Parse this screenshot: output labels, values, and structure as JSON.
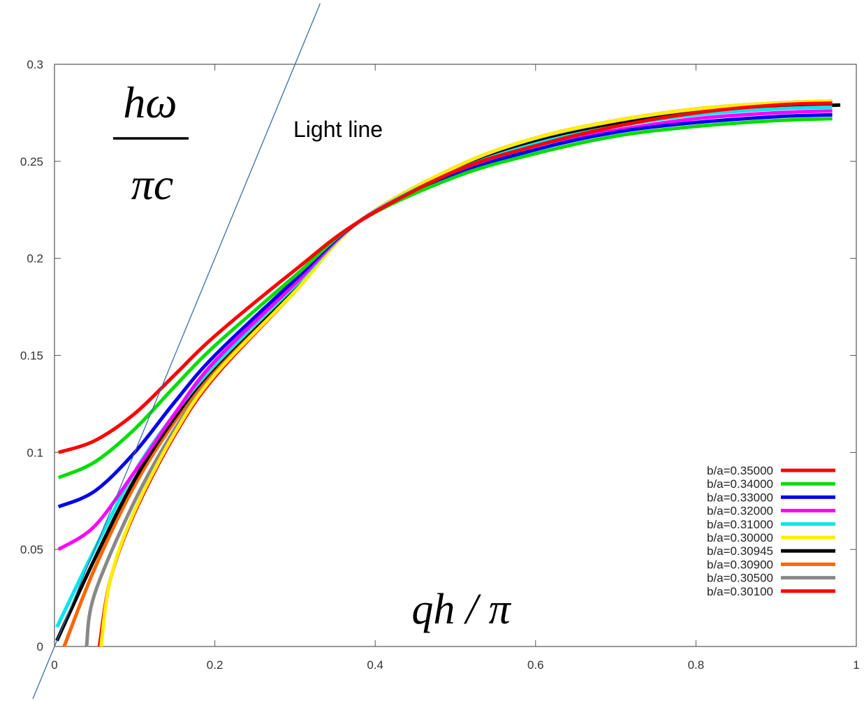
{
  "chart_data": {
    "type": "line",
    "title": "",
    "xlabel": "qh / π",
    "ylabel_numerator": "hω",
    "ylabel_denominator": "πc",
    "xlim": [
      0,
      1
    ],
    "ylim": [
      0,
      0.3
    ],
    "x_ticks": [
      "0",
      "0.2",
      "0.4",
      "0.6",
      "0.8",
      "1"
    ],
    "y_ticks": [
      "0",
      "0.05",
      "0.1",
      "0.15",
      "0.2",
      "0.25",
      "0.3"
    ],
    "grid": false,
    "legend_position": "bottom-right",
    "annotation": "Light line",
    "light_line": {
      "x": [
        -0.03,
        0.33
      ],
      "y": [
        -0.03,
        0.33
      ]
    },
    "series": [
      {
        "name": "b/a=0.35000",
        "color": "#ff0000",
        "x": [
          0.005,
          0.05,
          0.1,
          0.15,
          0.2,
          0.3,
          0.38,
          0.5,
          0.6,
          0.7,
          0.8,
          0.9,
          0.97
        ],
        "y": [
          0.1,
          0.106,
          0.12,
          0.14,
          0.16,
          0.194,
          0.219,
          0.245,
          0.258,
          0.268,
          0.275,
          0.279,
          0.28
        ]
      },
      {
        "name": "b/a=0.34000",
        "color": "#00dd00",
        "x": [
          0.005,
          0.05,
          0.1,
          0.15,
          0.2,
          0.3,
          0.38,
          0.5,
          0.6,
          0.7,
          0.8,
          0.9,
          0.97
        ],
        "y": [
          0.087,
          0.095,
          0.112,
          0.134,
          0.155,
          0.191,
          0.219,
          0.242,
          0.254,
          0.263,
          0.268,
          0.271,
          0.272
        ]
      },
      {
        "name": "b/a=0.33000",
        "color": "#0000ee",
        "x": [
          0.005,
          0.05,
          0.1,
          0.15,
          0.2,
          0.3,
          0.38,
          0.5,
          0.6,
          0.7,
          0.8,
          0.9,
          0.97
        ],
        "y": [
          0.072,
          0.08,
          0.1,
          0.126,
          0.15,
          0.189,
          0.219,
          0.243,
          0.256,
          0.265,
          0.27,
          0.273,
          0.274
        ]
      },
      {
        "name": "b/a=0.32000",
        "color": "#ff00ff",
        "x": [
          0.005,
          0.05,
          0.1,
          0.15,
          0.2,
          0.3,
          0.38,
          0.5,
          0.6,
          0.7,
          0.8,
          0.9,
          0.97
        ],
        "y": [
          0.05,
          0.062,
          0.09,
          0.12,
          0.147,
          0.187,
          0.219,
          0.244,
          0.258,
          0.266,
          0.272,
          0.275,
          0.276
        ]
      },
      {
        "name": "b/a=0.31000",
        "color": "#00e5ee",
        "x": [
          0.003,
          0.05,
          0.1,
          0.15,
          0.2,
          0.3,
          0.38,
          0.5,
          0.6,
          0.7,
          0.8,
          0.9,
          0.97
        ],
        "y": [
          0.01,
          0.05,
          0.09,
          0.12,
          0.145,
          0.186,
          0.219,
          0.245,
          0.259,
          0.268,
          0.274,
          0.277,
          0.278
        ]
      },
      {
        "name": "b/a=0.30000",
        "color": "#ffee00",
        "x": [
          0.058,
          0.07,
          0.1,
          0.15,
          0.2,
          0.3,
          0.38,
          0.5,
          0.6,
          0.7,
          0.8,
          0.9,
          0.97
        ],
        "y": [
          0.0,
          0.035,
          0.07,
          0.11,
          0.14,
          0.183,
          0.219,
          0.247,
          0.262,
          0.271,
          0.277,
          0.28,
          0.281
        ]
      },
      {
        "name": "b/a=0.30945",
        "color": "#000000",
        "x": [
          0.003,
          0.05,
          0.1,
          0.15,
          0.2,
          0.3,
          0.38,
          0.5,
          0.6,
          0.7,
          0.8,
          0.9,
          0.98
        ],
        "y": [
          0.003,
          0.045,
          0.086,
          0.118,
          0.144,
          0.185,
          0.219,
          0.246,
          0.26,
          0.269,
          0.275,
          0.278,
          0.279
        ]
      },
      {
        "name": "b/a=0.30900",
        "color": "#ff6600",
        "x": [
          0.012,
          0.05,
          0.1,
          0.15,
          0.2,
          0.3,
          0.38,
          0.5,
          0.6,
          0.7,
          0.8,
          0.9,
          0.97
        ],
        "y": [
          0.0,
          0.04,
          0.083,
          0.116,
          0.143,
          0.185,
          0.219,
          0.246,
          0.26,
          0.269,
          0.275,
          0.278,
          0.279
        ]
      },
      {
        "name": "b/a=0.30500",
        "color": "#888888",
        "x": [
          0.04,
          0.05,
          0.1,
          0.15,
          0.2,
          0.3,
          0.38,
          0.5,
          0.6,
          0.7,
          0.8,
          0.9,
          0.97
        ],
        "y": [
          0.0,
          0.027,
          0.075,
          0.112,
          0.141,
          0.184,
          0.219,
          0.246,
          0.261,
          0.27,
          0.276,
          0.279,
          0.28
        ]
      },
      {
        "name": "b/a=0.30100",
        "color": "#ff0000",
        "x": [
          0.056,
          0.07,
          0.1,
          0.15,
          0.2,
          0.3,
          0.38,
          0.5,
          0.6,
          0.7,
          0.8,
          0.9,
          0.97
        ],
        "y": [
          0.0,
          0.035,
          0.069,
          0.109,
          0.139,
          0.183,
          0.219,
          0.247,
          0.262,
          0.271,
          0.277,
          0.28,
          0.281
        ]
      }
    ]
  }
}
